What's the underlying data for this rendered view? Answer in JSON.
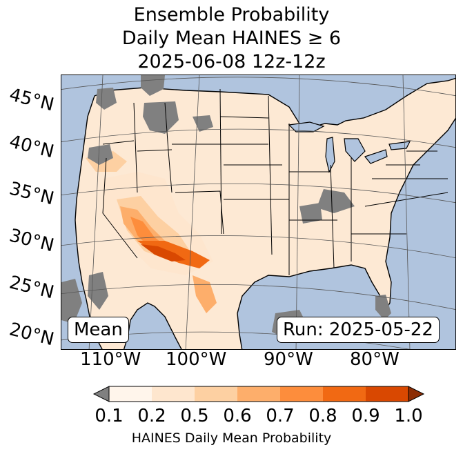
{
  "title": {
    "line1": "Ensemble Probability",
    "line2": "Daily Mean HAINES ≥ 6",
    "line3": "2025-06-08 12z-12z"
  },
  "map": {
    "lat_labels": [
      "45°N",
      "40°N",
      "35°N",
      "30°N",
      "25°N",
      "20°N"
    ],
    "lon_labels": [
      "110°W",
      "100°W",
      "90°W",
      "80°W"
    ],
    "stat_box": "Mean",
    "run_box": "Run: 2025-05-22",
    "colors": {
      "ocean": "#b0c4de",
      "missing": "#808080",
      "land_base": "#fde9d4"
    }
  },
  "colorbar": {
    "ticks": [
      "0.1",
      "0.2",
      "0.5",
      "0.6",
      "0.7",
      "0.8",
      "0.9",
      "1.0"
    ],
    "colors": [
      "#fff5eb",
      "#fee6ce",
      "#fdd0a2",
      "#fdae6b",
      "#fd8d3c",
      "#f16913",
      "#d94801"
    ],
    "under_color": "#808080",
    "over_color": "#8c2d04",
    "label": "HAINES Daily Mean Probability"
  }
}
